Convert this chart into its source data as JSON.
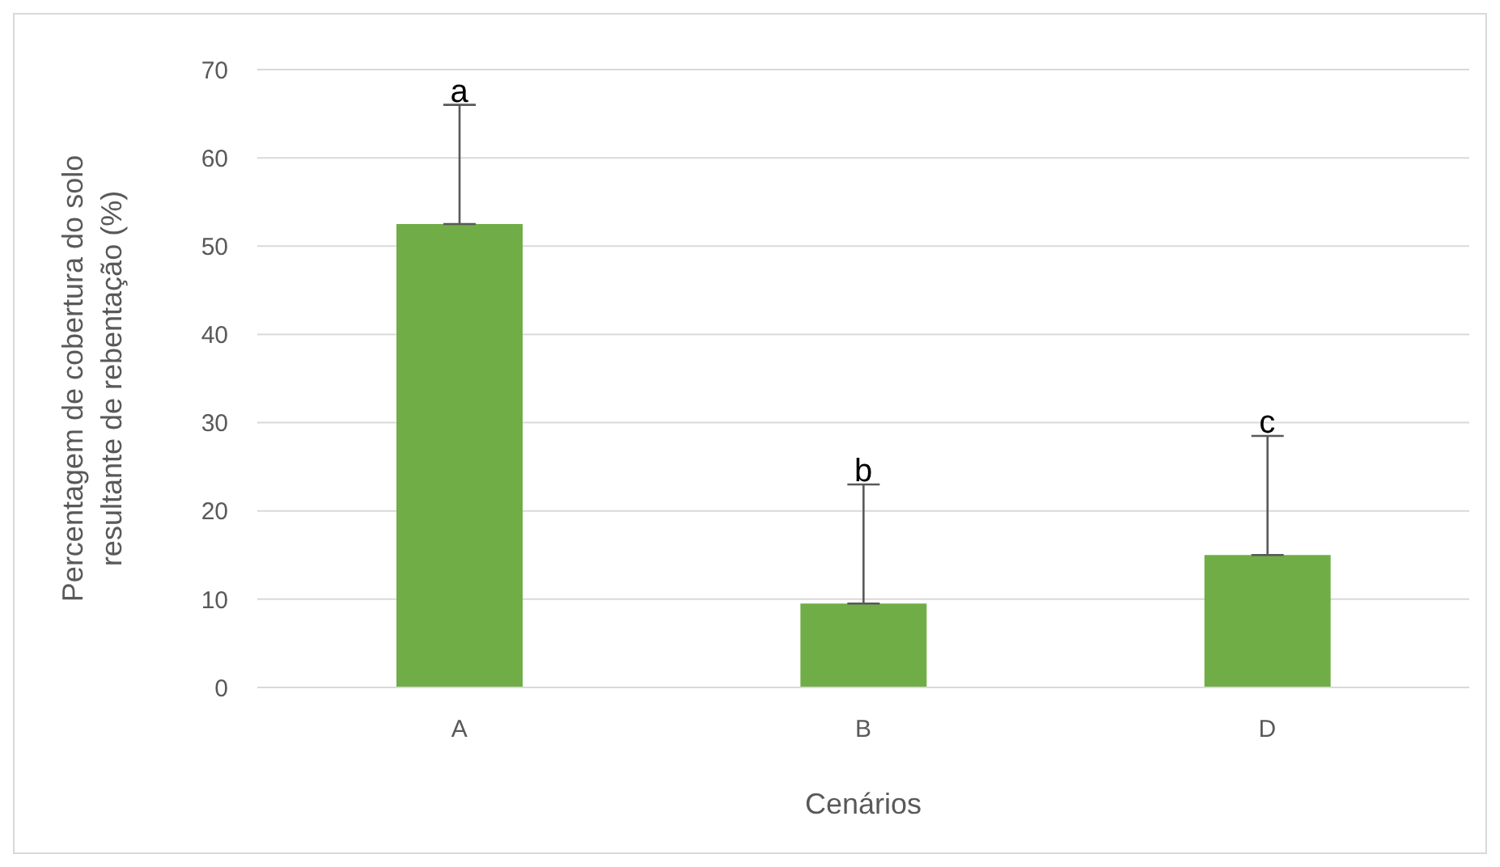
{
  "chart_data": {
    "type": "bar",
    "xlabel": "Cenários",
    "ylabel": "Percentagem de cobertura do solo resultante de rebentação (%)",
    "categories": [
      "A",
      "B",
      "D"
    ],
    "values": [
      52.5,
      9.5,
      15
    ],
    "color": "#70ad47",
    "errors": [
      [
        52.5,
        66
      ],
      [
        9.5,
        23
      ],
      [
        15,
        28.5
      ]
    ],
    "ylim": [
      0,
      70
    ],
    "yticks": [
      0,
      10,
      20,
      30,
      40,
      50,
      60,
      70
    ],
    "grid": "y",
    "annotations": [
      {
        "text": "a",
        "x": "A",
        "y": 66
      },
      {
        "text": "b",
        "x": "B",
        "y": 23
      },
      {
        "text": "c",
        "x": "D",
        "y": 28.5
      }
    ]
  }
}
